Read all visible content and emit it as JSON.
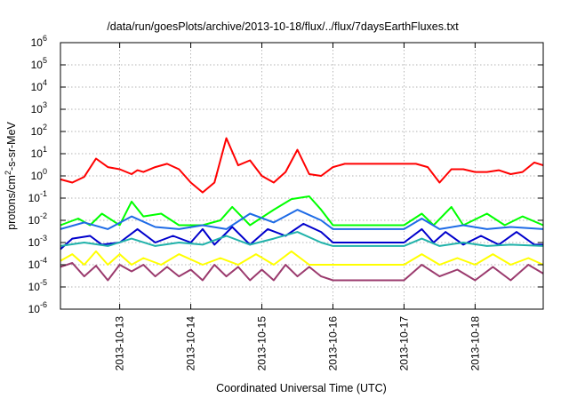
{
  "chart_data": {
    "type": "line",
    "title": "/data/run/goesPlots/archive/2013-10-18/flux/../flux/7daysEarthFluxes.txt",
    "xlabel": "Coordinated Universal Time (UTC)",
    "ylabel": "protons/cm²-s-sr-MeV",
    "ylabel_parts": {
      "pre": "protons/cm",
      "sup": "2",
      "post": "-s-sr-MeV"
    },
    "y_scale": "log",
    "ylim_exponents": [
      -6,
      6
    ],
    "y_tick_labels": [
      {
        "base": "10",
        "exp": "-6"
      },
      {
        "base": "10",
        "exp": "-5"
      },
      {
        "base": "10",
        "exp": "-4"
      },
      {
        "base": "10",
        "exp": "-3"
      },
      {
        "base": "10",
        "exp": "-2"
      },
      {
        "base": "10",
        "exp": "-1"
      },
      {
        "base": "10",
        "exp": "0"
      },
      {
        "base": "10",
        "exp": "1"
      },
      {
        "base": "10",
        "exp": "2"
      },
      {
        "base": "10",
        "exp": "3"
      },
      {
        "base": "10",
        "exp": "4"
      },
      {
        "base": "10",
        "exp": "5"
      },
      {
        "base": "10",
        "exp": "6"
      }
    ],
    "xlim": [
      "2013-10-12 04:00",
      "2013-10-18 23:00"
    ],
    "x_tick_labels": [
      "2013-10-13",
      "2013-10-14",
      "2013-10-15",
      "2013-10-16",
      "2013-10-17",
      "2013-10-18"
    ],
    "grid": true,
    "series": [
      {
        "color": "#ff0000",
        "x": [
          "2013-10-12 04:00",
          "2013-10-12 08:00",
          "2013-10-12 12:00",
          "2013-10-12 16:00",
          "2013-10-12 20:00",
          "2013-10-13 00:00",
          "2013-10-13 04:00",
          "2013-10-13 06:00",
          "2013-10-13 08:00",
          "2013-10-13 12:00",
          "2013-10-13 16:00",
          "2013-10-13 20:00",
          "2013-10-14 00:00",
          "2013-10-14 04:00",
          "2013-10-14 08:00",
          "2013-10-14 12:00",
          "2013-10-14 16:00",
          "2013-10-14 20:00",
          "2013-10-15 00:00",
          "2013-10-15 04:00",
          "2013-10-15 08:00",
          "2013-10-15 12:00",
          "2013-10-15 16:00",
          "2013-10-15 20:00",
          "2013-10-16 00:00",
          "2013-10-16 04:00",
          "2013-10-16 12:00",
          "2013-10-17 00:00",
          "2013-10-17 04:00",
          "2013-10-17 08:00",
          "2013-10-17 12:00",
          "2013-10-17 16:00",
          "2013-10-17 20:00",
          "2013-10-18 00:00",
          "2013-10-18 04:00",
          "2013-10-18 08:00",
          "2013-10-18 12:00",
          "2013-10-18 16:00",
          "2013-10-18 20:00",
          "2013-10-18 23:00"
        ],
        "values": [
          0.7,
          0.5,
          0.9,
          6.0,
          2.5,
          2.0,
          1.2,
          1.8,
          1.5,
          2.5,
          3.5,
          2.0,
          0.5,
          0.18,
          0.5,
          50,
          3.0,
          5.0,
          1.0,
          0.5,
          1.5,
          15,
          1.2,
          1.0,
          2.5,
          3.5,
          3.5,
          3.5,
          3.5,
          2.5,
          0.5,
          2.0,
          2.0,
          1.5,
          1.5,
          1.8,
          1.2,
          1.5,
          4.0,
          3.0
        ]
      },
      {
        "color": "#00ff00",
        "x": [
          "2013-10-12 04:00",
          "2013-10-12 10:00",
          "2013-10-12 14:00",
          "2013-10-12 18:00",
          "2013-10-13 00:00",
          "2013-10-13 04:00",
          "2013-10-13 08:00",
          "2013-10-13 14:00",
          "2013-10-13 20:00",
          "2013-10-14 04:00",
          "2013-10-14 10:00",
          "2013-10-14 14:00",
          "2013-10-14 20:00",
          "2013-10-15 04:00",
          "2013-10-15 10:00",
          "2013-10-15 16:00",
          "2013-10-15 20:00",
          "2013-10-16 00:00",
          "2013-10-16 12:00",
          "2013-10-17 00:00",
          "2013-10-17 06:00",
          "2013-10-17 10:00",
          "2013-10-17 16:00",
          "2013-10-17 20:00",
          "2013-10-18 04:00",
          "2013-10-18 10:00",
          "2013-10-18 16:00",
          "2013-10-18 23:00"
        ],
        "values": [
          0.006,
          0.012,
          0.006,
          0.02,
          0.006,
          0.07,
          0.015,
          0.02,
          0.006,
          0.006,
          0.01,
          0.04,
          0.006,
          0.03,
          0.09,
          0.12,
          0.03,
          0.006,
          0.006,
          0.006,
          0.02,
          0.006,
          0.04,
          0.006,
          0.02,
          0.006,
          0.015,
          0.006
        ]
      },
      {
        "color": "#1e6be6",
        "x": [
          "2013-10-12 04:00",
          "2013-10-12 12:00",
          "2013-10-12 20:00",
          "2013-10-13 04:00",
          "2013-10-13 12:00",
          "2013-10-13 20:00",
          "2013-10-14 04:00",
          "2013-10-14 12:00",
          "2013-10-14 20:00",
          "2013-10-15 04:00",
          "2013-10-15 12:00",
          "2013-10-15 20:00",
          "2013-10-16 00:00",
          "2013-10-16 12:00",
          "2013-10-17 00:00",
          "2013-10-17 06:00",
          "2013-10-17 12:00",
          "2013-10-17 20:00",
          "2013-10-18 04:00",
          "2013-10-18 12:00",
          "2013-10-18 23:00"
        ],
        "values": [
          0.004,
          0.008,
          0.004,
          0.015,
          0.005,
          0.004,
          0.006,
          0.004,
          0.02,
          0.008,
          0.03,
          0.01,
          0.004,
          0.004,
          0.004,
          0.012,
          0.004,
          0.006,
          0.004,
          0.005,
          0.004
        ]
      },
      {
        "color": "#0000cc",
        "x": [
          "2013-10-12 04:00",
          "2013-10-12 08:00",
          "2013-10-12 14:00",
          "2013-10-12 18:00",
          "2013-10-13 00:00",
          "2013-10-13 06:00",
          "2013-10-13 12:00",
          "2013-10-13 18:00",
          "2013-10-14 00:00",
          "2013-10-14 04:00",
          "2013-10-14 08:00",
          "2013-10-14 14:00",
          "2013-10-14 20:00",
          "2013-10-15 02:00",
          "2013-10-15 08:00",
          "2013-10-15 14:00",
          "2013-10-15 20:00",
          "2013-10-16 00:00",
          "2013-10-16 12:00",
          "2013-10-17 00:00",
          "2013-10-17 06:00",
          "2013-10-17 10:00",
          "2013-10-17 14:00",
          "2013-10-17 20:00",
          "2013-10-18 02:00",
          "2013-10-18 08:00",
          "2013-10-18 14:00",
          "2013-10-18 20:00",
          "2013-10-18 23:00"
        ],
        "values": [
          0.0005,
          0.0015,
          0.002,
          0.0008,
          0.001,
          0.004,
          0.001,
          0.002,
          0.001,
          0.004,
          0.0008,
          0.005,
          0.0008,
          0.004,
          0.002,
          0.007,
          0.003,
          0.001,
          0.001,
          0.001,
          0.004,
          0.001,
          0.003,
          0.0008,
          0.002,
          0.0008,
          0.003,
          0.0008,
          0.0008
        ]
      },
      {
        "color": "#20b2aa",
        "x": [
          "2013-10-12 04:00",
          "2013-10-12 12:00",
          "2013-10-12 20:00",
          "2013-10-13 04:00",
          "2013-10-13 12:00",
          "2013-10-13 20:00",
          "2013-10-14 04:00",
          "2013-10-14 12:00",
          "2013-10-14 20:00",
          "2013-10-15 04:00",
          "2013-10-15 12:00",
          "2013-10-15 20:00",
          "2013-10-16 00:00",
          "2013-10-16 12:00",
          "2013-10-17 00:00",
          "2013-10-17 06:00",
          "2013-10-17 12:00",
          "2013-10-17 20:00",
          "2013-10-18 04:00",
          "2013-10-18 12:00",
          "2013-10-18 23:00"
        ],
        "values": [
          0.0007,
          0.001,
          0.0007,
          0.0015,
          0.0007,
          0.001,
          0.0008,
          0.002,
          0.0008,
          0.0015,
          0.003,
          0.001,
          0.0007,
          0.0007,
          0.0007,
          0.0015,
          0.0007,
          0.001,
          0.0007,
          0.0008,
          0.0007
        ]
      },
      {
        "color": "#ffff00",
        "x": [
          "2013-10-12 04:00",
          "2013-10-12 08:00",
          "2013-10-12 12:00",
          "2013-10-12 16:00",
          "2013-10-12 20:00",
          "2013-10-13 00:00",
          "2013-10-13 04:00",
          "2013-10-13 08:00",
          "2013-10-13 14:00",
          "2013-10-13 20:00",
          "2013-10-14 04:00",
          "2013-10-14 10:00",
          "2013-10-14 16:00",
          "2013-10-14 22:00",
          "2013-10-15 04:00",
          "2013-10-15 10:00",
          "2013-10-15 16:00",
          "2013-10-16 00:00",
          "2013-10-16 12:00",
          "2013-10-17 00:00",
          "2013-10-17 06:00",
          "2013-10-17 12:00",
          "2013-10-17 18:00",
          "2013-10-18 00:00",
          "2013-10-18 06:00",
          "2013-10-18 12:00",
          "2013-10-18 18:00",
          "2013-10-18 23:00"
        ],
        "values": [
          0.00015,
          0.0003,
          0.0001,
          0.0004,
          0.0001,
          0.0003,
          0.0001,
          0.0002,
          0.0001,
          0.0003,
          0.0001,
          0.0002,
          0.0001,
          0.0003,
          0.0001,
          0.0004,
          0.0001,
          0.0001,
          0.0001,
          0.0001,
          0.0003,
          0.0001,
          0.0002,
          0.0001,
          0.0003,
          0.0001,
          0.0002,
          0.0001
        ]
      },
      {
        "color": "#9b3b6e",
        "x": [
          "2013-10-12 04:00",
          "2013-10-12 08:00",
          "2013-10-12 12:00",
          "2013-10-12 16:00",
          "2013-10-12 20:00",
          "2013-10-13 00:00",
          "2013-10-13 04:00",
          "2013-10-13 08:00",
          "2013-10-13 12:00",
          "2013-10-13 16:00",
          "2013-10-13 20:00",
          "2013-10-14 00:00",
          "2013-10-14 04:00",
          "2013-10-14 08:00",
          "2013-10-14 12:00",
          "2013-10-14 16:00",
          "2013-10-14 20:00",
          "2013-10-15 00:00",
          "2013-10-15 04:00",
          "2013-10-15 08:00",
          "2013-10-15 12:00",
          "2013-10-15 16:00",
          "2013-10-15 20:00",
          "2013-10-16 00:00",
          "2013-10-16 12:00",
          "2013-10-17 00:00",
          "2013-10-17 06:00",
          "2013-10-17 12:00",
          "2013-10-17 18:00",
          "2013-10-18 00:00",
          "2013-10-18 06:00",
          "2013-10-18 12:00",
          "2013-10-18 18:00",
          "2013-10-18 23:00"
        ],
        "values": [
          8e-05,
          0.00012,
          3e-05,
          9e-05,
          2e-05,
          0.0001,
          5e-05,
          0.0001,
          3e-05,
          8e-05,
          3e-05,
          6e-05,
          2e-05,
          0.0001,
          3e-05,
          8e-05,
          2e-05,
          6e-05,
          2e-05,
          0.0001,
          3e-05,
          8e-05,
          3e-05,
          2e-05,
          2e-05,
          2e-05,
          0.0001,
          3e-05,
          6e-05,
          2e-05,
          8e-05,
          2e-05,
          0.0001,
          4e-05
        ]
      }
    ]
  }
}
